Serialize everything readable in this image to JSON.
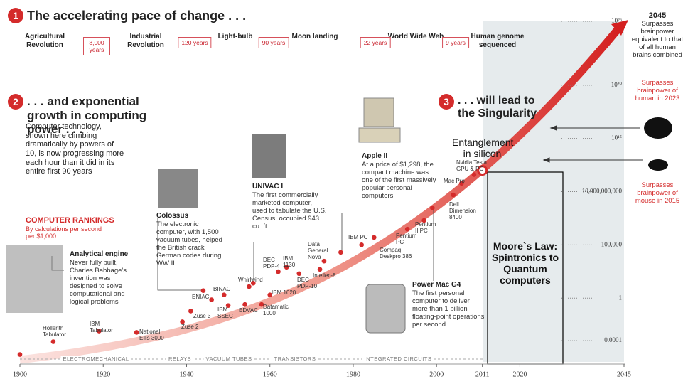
{
  "chart_data": {
    "type": "scatter",
    "title": "The accelerating pace of change . . .",
    "subtitle": ". . . and exponential growth in computing power . . .",
    "conclusion": ". . . will lead to the Singularity",
    "section_numbers": [
      "1",
      "2",
      "3"
    ],
    "intro": "Computer technology, shown here climbing dramatically by powers of 10, is now progressing more each hour than it did in its entire first 90 years",
    "rankings_title": "COMPUTER RANKINGS",
    "rankings_note": "By calculations per second per $1,000",
    "timeline_events": [
      "Agricultural Revolution",
      "Industrial Revolution",
      "Light-bulb",
      "Moon landing",
      "World Wide Web",
      "Human genome sequenced"
    ],
    "timeline_intervals": [
      "8,000 years",
      "120 years",
      "90 years",
      "22 years",
      "9 years"
    ],
    "eras": [
      "ELECTROMECHANICAL",
      "RELAYS",
      "VACUUM TUBES",
      "TRANSISTORS",
      "INTEGRATED CIRCUITS"
    ],
    "callouts": [
      {
        "title": "Analytical engine",
        "text": "Never fully built, Charles Babbage's invention was designed to solve computational and logical problems"
      },
      {
        "title": "Colossus",
        "text": "The electronic computer, with 1,500 vacuum tubes, helped the British crack German codes during WW II"
      },
      {
        "title": "UNIVAC I",
        "text": "The first commercially marketed computer, used to tabulate the U.S. Census, occupied 943 cu. ft."
      },
      {
        "title": "Apple II",
        "text": "At a price of $1,298, the compact machine was one of the first massively popular personal computers"
      },
      {
        "title": "Power Mac G4",
        "text": "The first personal computer to deliver more than 1 billion floating-point operations per second"
      },
      {
        "title": "Entanglement in silicon",
        "text": null
      }
    ],
    "milestones": [
      {
        "title": "2045",
        "text": "Surpasses brainpower equivalent to that of all human brains combined"
      },
      {
        "title": null,
        "text": "Surpasses brainpower of human in 2023"
      },
      {
        "title": null,
        "text": "Surpasses brainpower of mouse in 2015"
      }
    ],
    "overlay": "Moore`s Law: Spintronics to Quantum computers",
    "x": [
      1900,
      1908,
      1919,
      1928,
      1939,
      1941,
      1946,
      1944,
      1949,
      1950,
      1954,
      1955,
      1956,
      1958,
      1960,
      1962,
      1964,
      1967,
      1972,
      1973,
      1977,
      1982,
      1985,
      1993,
      1997,
      1999,
      2004,
      2006,
      2009,
      2011
    ],
    "values": [
      5e-06,
      8e-05,
      0.0008,
      0.0006,
      0.006,
      0.06,
      0.7,
      5,
      2,
      0.2,
      0.25,
      12,
      25,
      0.25,
      2,
      300,
      800,
      200,
      500,
      3000,
      20000,
      100000,
      500000,
      3000000,
      20000000,
      300000000,
      5000000000,
      60000000000,
      400000000000,
      1000000000000
    ],
    "labels": [
      null,
      "Hollerith Tabulator",
      "IBM Tabulator",
      "National Ellis 3000",
      "Zuse 2",
      "Zuse 3",
      "ENIAC",
      null,
      "BINAC",
      "IBM SSEC",
      "EDVAC",
      "Whirlwind",
      null,
      "Datamatic 1000",
      "IBM 1620",
      "DEC PDP-4",
      "IBM 1130",
      "DEC PDP-10",
      "Intellec-8",
      "Data General Nova",
      null,
      "IBM PC",
      "Compaq Deskpro 386",
      "Pentium PC",
      "Pentium II PC",
      null,
      "Dell Dimension 8400",
      "Mac Pro",
      "Nvidia Tesla GPU & PC",
      null
    ],
    "color": "#d42b2b",
    "xlim": [
      1900,
      2045
    ],
    "xticks": [
      1900,
      1920,
      1940,
      1960,
      1980,
      2000,
      2011,
      2020,
      2045
    ],
    "ylim": [
      1e-06,
      1e+26
    ],
    "yticks": [
      0.0001,
      1,
      {
        "value": 100000,
        "label": "100,000"
      },
      {
        "value": 10000000000,
        "label": "10,000,000,000"
      },
      {
        "value": 1000000000000000.0,
        "label": "10¹⁵"
      },
      {
        "value": 1e+20,
        "label": "10²⁰"
      },
      {
        "value": 1e+26,
        "label": "10²⁶"
      }
    ],
    "log_scale": true
  }
}
